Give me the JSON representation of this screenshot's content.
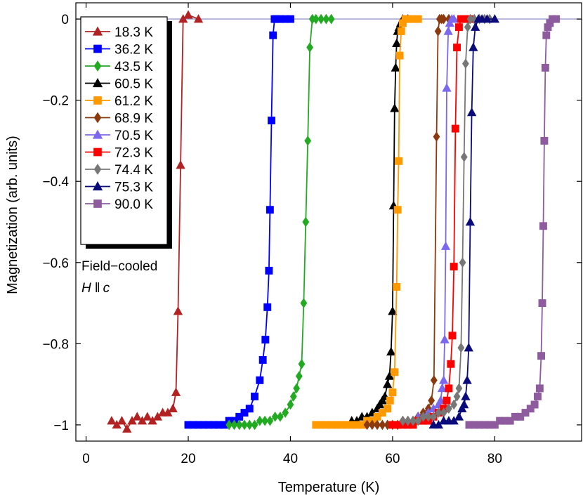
{
  "chart_data": {
    "type": "line",
    "title": "",
    "xlabel": "Temperature (K)",
    "ylabel": "Magnetization (arb. units)",
    "xlim": [
      -2,
      97
    ],
    "ylim": [
      -1.04,
      0.04
    ],
    "xticks": [
      0,
      20,
      40,
      60,
      80
    ],
    "xtick_labels": [
      "0",
      "20",
      "40",
      "60",
      "80"
    ],
    "yticks": [
      0,
      -0.2,
      -0.4,
      -0.6,
      -0.8,
      -1
    ],
    "ytick_labels": [
      "0",
      "−0.2",
      "−0.4",
      "−0.6",
      "−0.8",
      "−1"
    ],
    "reference_line": 0,
    "annotation": {
      "line1": "Field−cooled",
      "line2_var": "H",
      "line2_sym": "‖",
      "line2_axis": "c"
    },
    "legend_position": "top-left",
    "series": [
      {
        "name": "18.3 K",
        "color": "#b22222",
        "marker": "triangle",
        "x": [
          5,
          6,
          7,
          8,
          9,
          10,
          11,
          12,
          13,
          14,
          15,
          16,
          17,
          17.6,
          18,
          18.5,
          19,
          20,
          22
        ],
        "y": [
          -0.99,
          -1.0,
          -0.99,
          -1.01,
          -0.99,
          -0.98,
          -0.99,
          -0.98,
          -0.99,
          -0.98,
          -0.97,
          -0.97,
          -0.96,
          -0.92,
          -0.72,
          -0.36,
          0.0,
          0.01,
          0.0
        ]
      },
      {
        "name": "36.2 K",
        "color": "#0000ff",
        "marker": "square",
        "x": [
          20,
          21,
          22,
          23,
          24,
          25,
          26,
          27,
          28,
          29,
          30,
          31,
          32,
          33,
          34,
          34.6,
          35.1,
          35.5,
          35.8,
          36.0,
          36.3,
          36.6,
          36.9,
          37.3,
          38,
          39,
          40
        ],
        "y": [
          -1.0,
          -1.0,
          -1.0,
          -1.0,
          -1.0,
          -1.0,
          -1.0,
          -1.0,
          -0.99,
          -0.99,
          -0.98,
          -0.97,
          -0.96,
          -0.93,
          -0.89,
          -0.84,
          -0.79,
          -0.71,
          -0.62,
          -0.47,
          -0.25,
          -0.04,
          0.0,
          0.0,
          0.0,
          0.0,
          0.0
        ]
      },
      {
        "name": "43.5 K",
        "color": "#22aa22",
        "marker": "diamond",
        "x": [
          28,
          29,
          30,
          31,
          32,
          33,
          34,
          35,
          36,
          37,
          38,
          39,
          40,
          40.6,
          41.2,
          41.7,
          42.2,
          42.6,
          43.0,
          43.4,
          43.8,
          44.3,
          45,
          46,
          47,
          48
        ],
        "y": [
          -1.0,
          -1.0,
          -1.0,
          -1.0,
          -1.0,
          -1.0,
          -0.99,
          -0.99,
          -0.99,
          -0.98,
          -0.98,
          -0.97,
          -0.95,
          -0.93,
          -0.91,
          -0.88,
          -0.85,
          -0.7,
          -0.5,
          -0.3,
          -0.07,
          0.0,
          0.0,
          0.0,
          0.0,
          0.0
        ]
      },
      {
        "name": "60.5 K",
        "color": "#000000",
        "marker": "triangle",
        "x": [
          52,
          53,
          54,
          55,
          56,
          57,
          57.5,
          58,
          58.5,
          59,
          59.4,
          59.7,
          60.0,
          60.2,
          60.4,
          60.6,
          60.8,
          61.0,
          61.3,
          61.6,
          62,
          63
        ],
        "y": [
          -0.99,
          -0.99,
          -0.98,
          -0.98,
          -0.97,
          -0.96,
          -0.95,
          -0.94,
          -0.93,
          -0.9,
          -0.88,
          -0.82,
          -0.72,
          -0.46,
          -0.22,
          -0.12,
          -0.06,
          -0.03,
          -0.02,
          -0.01,
          0.0,
          0.0
        ]
      },
      {
        "name": "61.2 K",
        "color": "#ff9900",
        "marker": "square",
        "x": [
          45,
          46,
          47,
          48,
          49,
          50,
          51,
          52,
          53,
          54,
          55,
          56,
          57,
          58,
          59,
          59.5,
          60.0,
          60.4,
          60.8,
          61.0,
          61.2,
          61.4,
          61.7,
          62.0,
          62.5,
          63,
          64,
          65
        ],
        "y": [
          -1.0,
          -1.0,
          -1.0,
          -1.0,
          -1.0,
          -1.0,
          -1.0,
          -1.0,
          -1.0,
          -1.0,
          -0.99,
          -0.99,
          -0.98,
          -0.97,
          -0.96,
          -0.94,
          -0.92,
          -0.87,
          -0.66,
          -0.47,
          -0.35,
          -0.09,
          -0.03,
          -0.01,
          0.0,
          0.0,
          0.0,
          0.0
        ]
      },
      {
        "name": "68.9 K",
        "color": "#8b3a0f",
        "marker": "diamond",
        "x": [
          55,
          56,
          57,
          58,
          59,
          60,
          61,
          62,
          63,
          64,
          65,
          66,
          67,
          67.6,
          68.1,
          68.6,
          68.9,
          69.2,
          69.6,
          70,
          71
        ],
        "y": [
          -1.0,
          -1.0,
          -1.0,
          -1.0,
          -1.0,
          -1.0,
          -1.0,
          -0.99,
          -0.99,
          -0.99,
          -0.98,
          -0.97,
          -0.96,
          -0.94,
          -0.89,
          -0.29,
          -0.03,
          0.0,
          0.0,
          0.0,
          0.0
        ]
      },
      {
        "name": "70.5 K",
        "color": "#7b68ee",
        "marker": "triangle",
        "x": [
          62,
          63,
          64,
          65,
          66,
          67,
          68,
          69,
          69.4,
          69.7,
          70.0,
          70.2,
          70.4,
          70.6,
          70.9,
          71.2,
          71.6,
          72
        ],
        "y": [
          -0.99,
          -0.99,
          -0.99,
          -0.98,
          -0.98,
          -0.97,
          -0.96,
          -0.95,
          -0.94,
          -0.91,
          -0.89,
          -0.79,
          -0.56,
          -0.17,
          -0.03,
          -0.01,
          0.0,
          0.0
        ]
      },
      {
        "name": "72.3 K",
        "color": "#ff0000",
        "marker": "square",
        "x": [
          60,
          61,
          62,
          63,
          64,
          65,
          66,
          67,
          68,
          69,
          70,
          70.6,
          71.0,
          71.4,
          71.7,
          72.0,
          72.3,
          72.6,
          73.0,
          73.4,
          74,
          75
        ],
        "y": [
          -1.0,
          -1.0,
          -1.0,
          -1.0,
          -1.0,
          -0.99,
          -0.99,
          -0.99,
          -0.98,
          -0.97,
          -0.96,
          -0.94,
          -0.91,
          -0.85,
          -0.78,
          -0.61,
          -0.27,
          -0.07,
          -0.02,
          0.0,
          0.0,
          0.0
        ]
      },
      {
        "name": "74.4 K",
        "color": "#777777",
        "marker": "diamond",
        "x": [
          62,
          63,
          64,
          65,
          66,
          67,
          68,
          69,
          70,
          71,
          72,
          72.6,
          73.0,
          73.4,
          73.7,
          74.0,
          74.3,
          74.7,
          75.2,
          76,
          77,
          78,
          79
        ],
        "y": [
          -0.99,
          -0.99,
          -0.99,
          -0.99,
          -0.98,
          -0.98,
          -0.98,
          -0.97,
          -0.97,
          -0.96,
          -0.95,
          -0.93,
          -0.91,
          -0.81,
          -0.6,
          -0.34,
          -0.11,
          -0.02,
          0.0,
          0.0,
          0.0,
          0.0,
          0.0
        ]
      },
      {
        "name": "75.3 K",
        "color": "#0a0a7a",
        "marker": "triangle",
        "x": [
          68,
          69,
          70,
          71,
          72,
          73,
          73.6,
          74.0,
          74.3,
          74.6,
          74.9,
          75.2,
          75.5,
          75.8,
          76.2,
          76.8,
          77.5,
          78.5,
          80
        ],
        "y": [
          -1.0,
          -1.0,
          -0.99,
          -0.99,
          -0.99,
          -0.98,
          -0.96,
          -0.95,
          -0.93,
          -0.89,
          -0.81,
          -0.5,
          -0.23,
          -0.07,
          -0.02,
          0.0,
          0.0,
          0.0,
          0.0
        ]
      },
      {
        "name": "90.0 K",
        "color": "#8e5b9e",
        "marker": "square",
        "x": [
          75,
          76,
          77,
          78,
          79,
          80,
          81,
          82,
          83,
          84,
          85,
          86,
          87,
          87.8,
          88.4,
          88.8,
          89.1,
          89.3,
          89.5,
          89.7,
          89.9,
          90.1,
          90.4,
          90.8,
          91.3,
          92
        ],
        "y": [
          -1.0,
          -1.0,
          -1.0,
          -1.0,
          -1.0,
          -1.0,
          -0.99,
          -0.99,
          -0.99,
          -0.98,
          -0.98,
          -0.97,
          -0.96,
          -0.95,
          -0.93,
          -0.91,
          -0.83,
          -0.7,
          -0.51,
          -0.3,
          -0.12,
          -0.04,
          -0.02,
          -0.01,
          0.0,
          0.0
        ]
      }
    ]
  }
}
